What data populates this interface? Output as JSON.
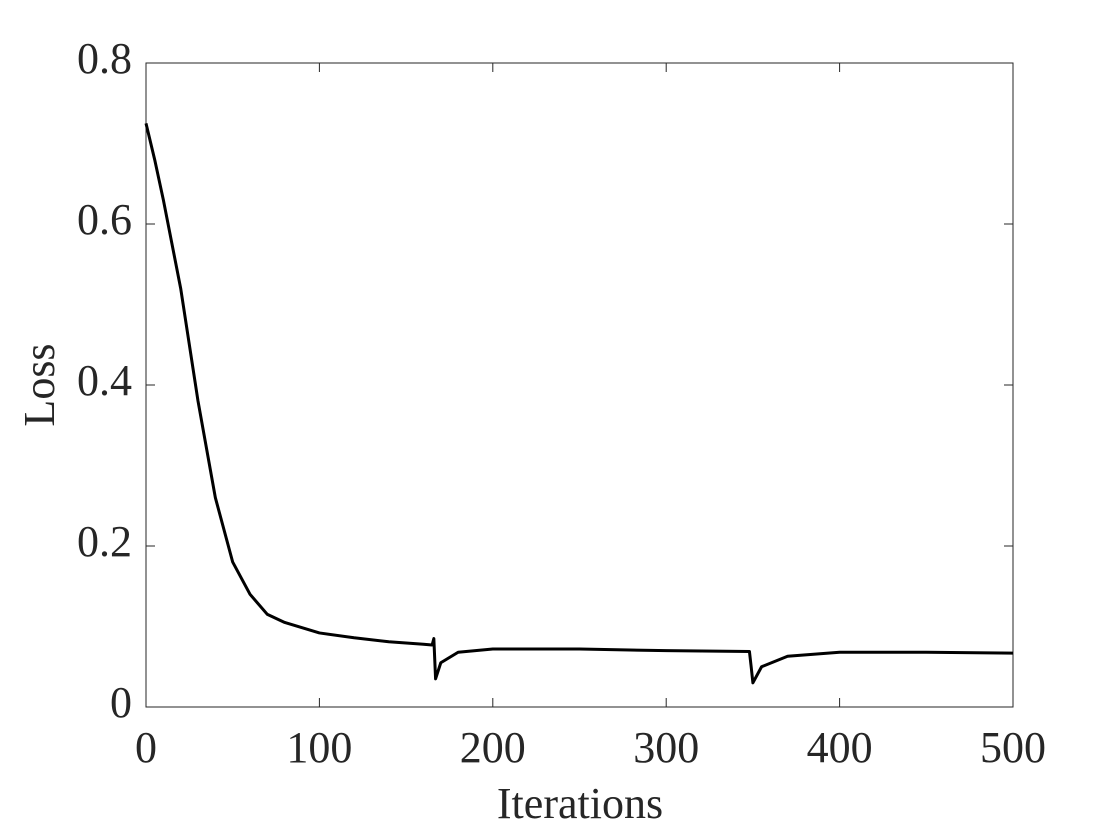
{
  "chart_data": {
    "type": "line",
    "x_label": "Iterations",
    "y_label": "Loss",
    "x": [
      0,
      5,
      10,
      20,
      30,
      40,
      50,
      60,
      70,
      80,
      100,
      120,
      140,
      160,
      165,
      166,
      167,
      170,
      180,
      200,
      250,
      300,
      348,
      349,
      350,
      355,
      370,
      400,
      450,
      500
    ],
    "values": [
      0.725,
      0.68,
      0.63,
      0.52,
      0.38,
      0.26,
      0.18,
      0.14,
      0.115,
      0.105,
      0.092,
      0.086,
      0.081,
      0.078,
      0.077,
      0.085,
      0.035,
      0.055,
      0.068,
      0.072,
      0.072,
      0.07,
      0.069,
      0.05,
      0.03,
      0.05,
      0.063,
      0.068,
      0.068,
      0.067
    ],
    "color": "#000000",
    "xlim": [
      0,
      500
    ],
    "xticks": [
      0,
      100,
      200,
      300,
      400,
      500
    ],
    "ylim": [
      0,
      0.8
    ],
    "yticks": [
      0,
      0.2,
      0.4,
      0.6,
      0.8
    ],
    "grid": false
  }
}
